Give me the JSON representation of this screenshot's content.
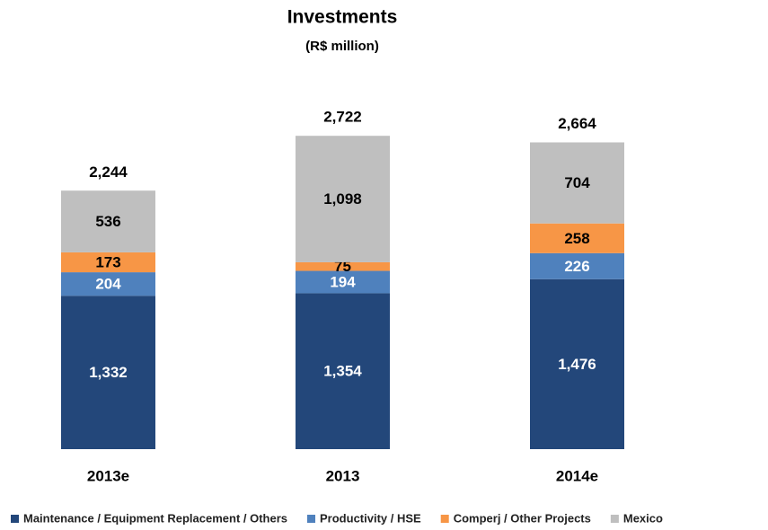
{
  "chart_data": {
    "type": "stacked_bar",
    "title": "Investments",
    "subtitle": "(R$ million)",
    "categories": [
      "2013e",
      "2013",
      "2014e"
    ],
    "series": [
      {
        "name": "Maintenance / Equipment Replacement / Others",
        "color": "#23477a",
        "values": [
          1332,
          1354,
          1476
        ],
        "value_labels": [
          "1,332",
          "1,354",
          "1,476"
        ]
      },
      {
        "name": "Productivity / HSE",
        "color": "#4f81bd",
        "values": [
          204,
          194,
          226
        ]
      },
      {
        "name": "Comperj / Other Projects",
        "color": "#f79646",
        "values": [
          173,
          75,
          258
        ]
      },
      {
        "name": "Mexico",
        "color": "#bfbfbf",
        "values": [
          536,
          1098,
          704
        ],
        "value_labels": [
          "536",
          "1,098",
          "704"
        ]
      }
    ],
    "totals": [
      2244,
      2722,
      2664
    ],
    "total_labels": [
      "2,244",
      "2,722",
      "2,664"
    ],
    "ylim": [
      0,
      3000
    ],
    "legend": "bottom"
  }
}
